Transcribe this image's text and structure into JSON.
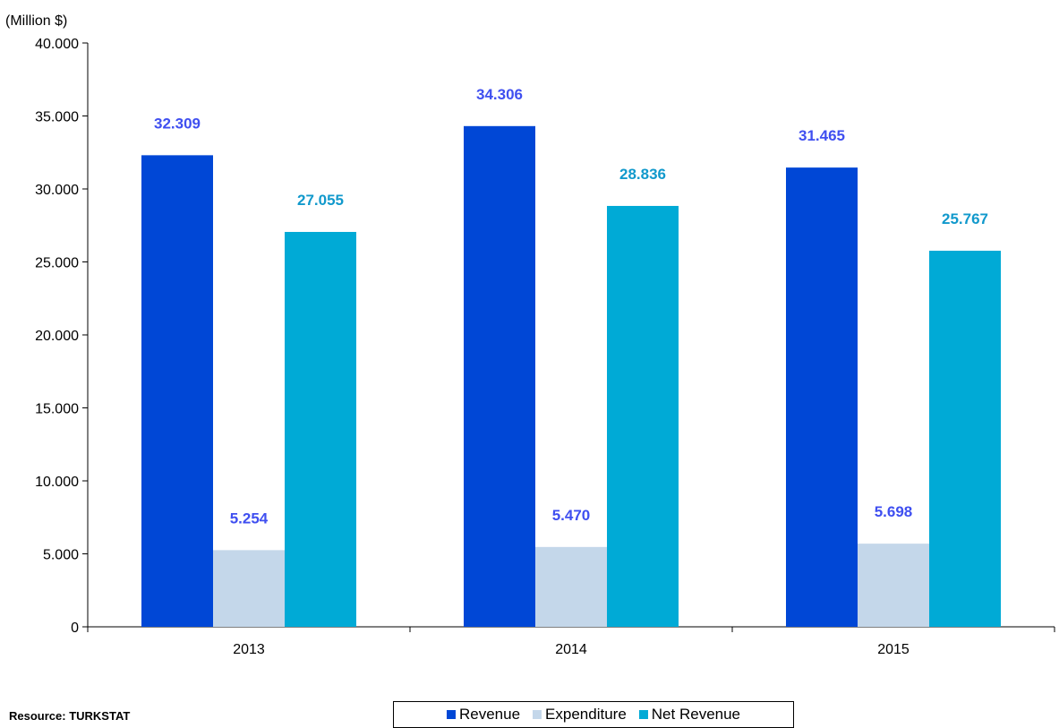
{
  "chart_data": {
    "type": "bar",
    "unit_label": "(Million $)",
    "categories": [
      "2013",
      "2014",
      "2015"
    ],
    "series": [
      {
        "name": "Revenue",
        "values": [
          32309,
          34306,
          31465
        ],
        "labels": [
          "32.309",
          "34.306",
          "31.465"
        ],
        "color": "#0047d6",
        "label_color": "#3f4ff0"
      },
      {
        "name": "Expenditure",
        "values": [
          5254,
          5470,
          5698
        ],
        "labels": [
          "5.254",
          "5.470",
          "5.698"
        ],
        "color": "#c4d7ea",
        "label_color": "#3f4ff0"
      },
      {
        "name": "Net Revenue",
        "values": [
          27055,
          28836,
          25767
        ],
        "labels": [
          "27.055",
          "28.836",
          "25.767"
        ],
        "color": "#00aad6",
        "label_color": "#1199cc"
      }
    ],
    "ylim": [
      0,
      40000
    ],
    "yticks": [
      0,
      5000,
      10000,
      15000,
      20000,
      25000,
      30000,
      35000,
      40000
    ],
    "ytick_labels": [
      "0",
      "5.000",
      "10.000",
      "15.000",
      "20.000",
      "25.000",
      "30.000",
      "35.000",
      "40.000"
    ],
    "grid": false,
    "legend_position": "bottom-center"
  },
  "source": "Resource: TURKSTAT"
}
